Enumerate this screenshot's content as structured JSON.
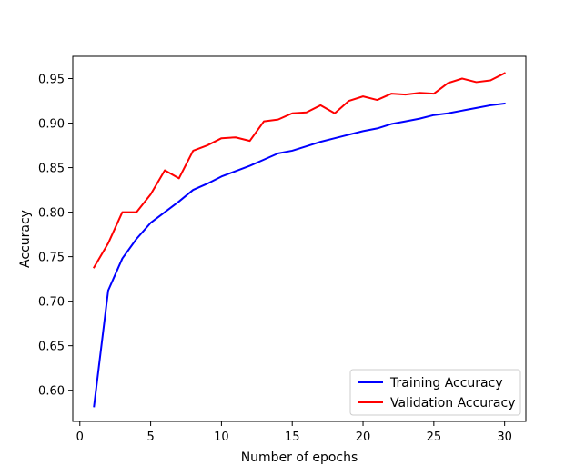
{
  "chart_data": {
    "type": "line",
    "title": "",
    "xlabel": "Number of epochs",
    "ylabel": "Accuracy",
    "xlim": [
      -0.5,
      31.5
    ],
    "ylim": [
      0.565,
      0.975
    ],
    "xticks": [
      0,
      5,
      10,
      15,
      20,
      25,
      30
    ],
    "yticks": [
      0.6,
      0.65,
      0.7,
      0.75,
      0.8,
      0.85,
      0.9,
      0.95
    ],
    "xtick_labels": [
      "0",
      "5",
      "10",
      "15",
      "20",
      "25",
      "30"
    ],
    "ytick_labels": [
      "0.60",
      "0.65",
      "0.70",
      "0.75",
      "0.80",
      "0.85",
      "0.90",
      "0.95"
    ],
    "grid": false,
    "legend_position": "lower-right",
    "x": [
      1,
      2,
      3,
      4,
      5,
      6,
      7,
      8,
      9,
      10,
      11,
      12,
      13,
      14,
      15,
      16,
      17,
      18,
      19,
      20,
      21,
      22,
      23,
      24,
      25,
      26,
      27,
      28,
      29,
      30
    ],
    "series": [
      {
        "name": "Training  Accuracy",
        "color": "#0000ff",
        "values": [
          0.582,
          0.712,
          0.748,
          0.77,
          0.788,
          0.8,
          0.812,
          0.825,
          0.832,
          0.84,
          0.846,
          0.852,
          0.859,
          0.866,
          0.869,
          0.874,
          0.879,
          0.883,
          0.887,
          0.891,
          0.894,
          0.899,
          0.902,
          0.905,
          0.909,
          0.911,
          0.914,
          0.917,
          0.92,
          0.922
        ]
      },
      {
        "name": "Validation Accuracy",
        "color": "#ff0000",
        "values": [
          0.738,
          0.765,
          0.8,
          0.8,
          0.82,
          0.847,
          0.838,
          0.869,
          0.875,
          0.883,
          0.884,
          0.88,
          0.902,
          0.904,
          0.911,
          0.912,
          0.92,
          0.911,
          0.925,
          0.93,
          0.926,
          0.933,
          0.932,
          0.934,
          0.933,
          0.945,
          0.95,
          0.946,
          0.948,
          0.956
        ]
      }
    ]
  }
}
